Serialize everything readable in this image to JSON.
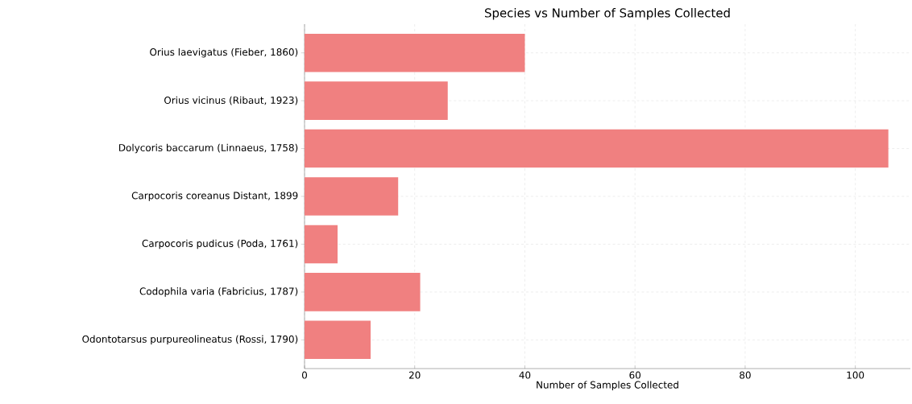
{
  "chart_data": {
    "type": "bar",
    "orientation": "horizontal",
    "title": "Species vs Number of Samples Collected",
    "xlabel": "Number of Samples Collected",
    "categories": [
      "Orius laevigatus (Fieber, 1860)",
      "Orius vicinus (Ribaut, 1923)",
      "Dolycoris baccarum (Linnaeus, 1758)",
      "Carpocoris coreanus Distant, 1899",
      "Carpocoris pudicus (Poda, 1761)",
      "Codophila varia (Fabricius, 1787)",
      "Odontotarsus purpureolineatus (Rossi, 1790)"
    ],
    "values": [
      40,
      26,
      106,
      17,
      6,
      21,
      12
    ],
    "color": "#f08080",
    "xlim": [
      0,
      110
    ],
    "xticks": [
      0,
      20,
      40,
      60,
      80,
      100
    ],
    "grid": true
  }
}
